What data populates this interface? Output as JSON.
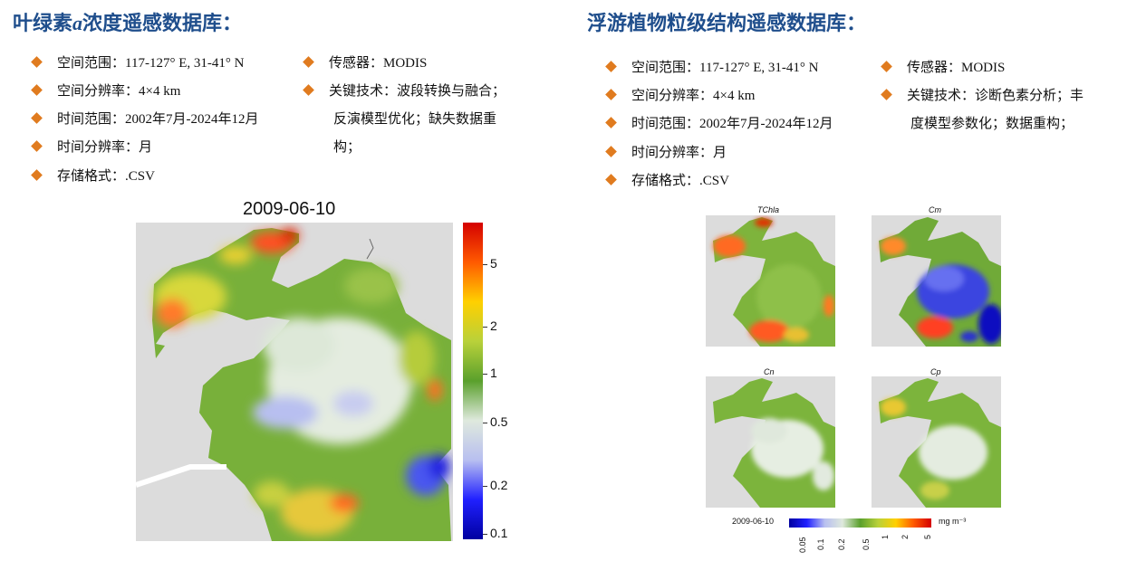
{
  "left": {
    "title_pre": "叶绿素",
    "title_italic": "a",
    "title_post": "浓度遥感数据库：",
    "items": [
      "空间范围：117-127° E, 31-41° N",
      "空间分辨率：4×4 km",
      "时间范围：2002年7月-2024年12月",
      "时间分辨率：月",
      "存储格式：.CSV"
    ],
    "items2": [
      "传感器：MODIS",
      "关键技术：波段转换与融合；"
    ],
    "items2_cont": [
      "反演模型优化；缺失数据重",
      "构；"
    ],
    "map": {
      "title": "2009-06-10",
      "colorbar_ticks": [
        "5",
        "2",
        "1",
        "0.5",
        "0.2",
        "0.1"
      ],
      "colorbar_colors": [
        "#d40000",
        "#ff5a00",
        "#ffd000",
        "#b9d13a",
        "#5aa02c",
        "#dfe9dd",
        "#b8bff0",
        "#2020ff",
        "#0000a0"
      ]
    }
  },
  "right": {
    "title": "浮游植物粒级结构遥感数据库：",
    "items": [
      "空间范围：117-127° E, 31-41° N",
      "空间分辨率：4×4 km",
      "时间范围：2002年7月-2024年12月",
      "时间分辨率：月",
      "存储格式：.CSV"
    ],
    "items2": [
      "传感器：MODIS",
      "关键技术：诊断色素分析；丰"
    ],
    "items2_cont": [
      "度模型参数化；数据重构；"
    ],
    "panels": [
      "TChla",
      "Cm",
      "Cn",
      "Cp"
    ],
    "colorbar": {
      "date": "2009-06-10",
      "unit": "mg m⁻³",
      "ticks": [
        "0.05",
        "0.1",
        "0.2",
        "0.5",
        "1",
        "2",
        "5"
      ]
    }
  }
}
